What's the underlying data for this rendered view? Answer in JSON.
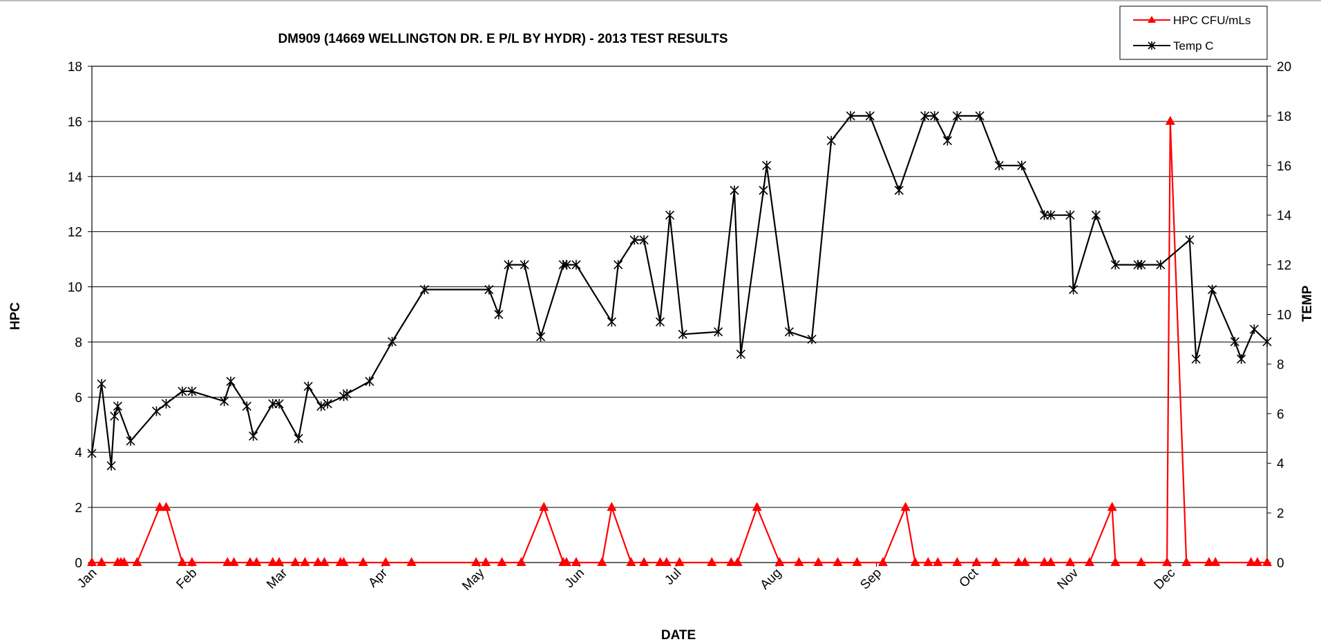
{
  "chart_data": {
    "type": "line",
    "title": "DM909 (14669 WELLINGTON DR. E P/L BY HYDR) - 2013 TEST RESULTS",
    "xlabel": "DATE",
    "ylabel": "HPC",
    "y2label": "TEMP",
    "x_axis": {
      "type": "date",
      "range": [
        "2013-01-01",
        "2013-12-31"
      ],
      "tick_labels": [
        "Jan",
        "Feb",
        "Mar",
        "Apr",
        "May",
        "Jun",
        "Jul",
        "Aug",
        "Sep",
        "Oct",
        "Nov",
        "Dec"
      ]
    },
    "ylim": [
      0,
      18
    ],
    "yticks": [
      0,
      2,
      4,
      6,
      8,
      10,
      12,
      14,
      16,
      18
    ],
    "y2lim": [
      0,
      20
    ],
    "y2ticks": [
      0,
      2,
      4,
      6,
      8,
      10,
      12,
      14,
      16,
      18,
      20
    ],
    "grid": true,
    "legend_position": "top-right",
    "series": [
      {
        "name": "HPC CFU/mLs",
        "axis": "left",
        "color": "#ff0000",
        "marker": "triangle",
        "points": [
          [
            "2013-01-01",
            0
          ],
          [
            "2013-01-04",
            0
          ],
          [
            "2013-01-09",
            0
          ],
          [
            "2013-01-10",
            0
          ],
          [
            "2013-01-11",
            0
          ],
          [
            "2013-01-15",
            0
          ],
          [
            "2013-01-22",
            2
          ],
          [
            "2013-01-24",
            2
          ],
          [
            "2013-01-29",
            0
          ],
          [
            "2013-02-01",
            0
          ],
          [
            "2013-02-12",
            0
          ],
          [
            "2013-02-14",
            0
          ],
          [
            "2013-02-19",
            0
          ],
          [
            "2013-02-21",
            0
          ],
          [
            "2013-02-26",
            0
          ],
          [
            "2013-02-28",
            0
          ],
          [
            "2013-03-05",
            0
          ],
          [
            "2013-03-08",
            0
          ],
          [
            "2013-03-12",
            0
          ],
          [
            "2013-03-14",
            0
          ],
          [
            "2013-03-19",
            0
          ],
          [
            "2013-03-20",
            0
          ],
          [
            "2013-03-26",
            0
          ],
          [
            "2013-04-02",
            0
          ],
          [
            "2013-04-10",
            0
          ],
          [
            "2013-04-30",
            0
          ],
          [
            "2013-05-03",
            0
          ],
          [
            "2013-05-08",
            0
          ],
          [
            "2013-05-14",
            0
          ],
          [
            "2013-05-21",
            2
          ],
          [
            "2013-05-27",
            0
          ],
          [
            "2013-05-28",
            0
          ],
          [
            "2013-05-31",
            0
          ],
          [
            "2013-06-08",
            0
          ],
          [
            "2013-06-11",
            2
          ],
          [
            "2013-06-17",
            0
          ],
          [
            "2013-06-21",
            0
          ],
          [
            "2013-06-26",
            0
          ],
          [
            "2013-06-28",
            0
          ],
          [
            "2013-07-02",
            0
          ],
          [
            "2013-07-12",
            0
          ],
          [
            "2013-07-18",
            0
          ],
          [
            "2013-07-20",
            0
          ],
          [
            "2013-07-26",
            2
          ],
          [
            "2013-08-02",
            0
          ],
          [
            "2013-08-08",
            0
          ],
          [
            "2013-08-14",
            0
          ],
          [
            "2013-08-20",
            0
          ],
          [
            "2013-08-26",
            0
          ],
          [
            "2013-09-03",
            0
          ],
          [
            "2013-09-10",
            2
          ],
          [
            "2013-09-13",
            0
          ],
          [
            "2013-09-17",
            0
          ],
          [
            "2013-09-20",
            0
          ],
          [
            "2013-09-26",
            0
          ],
          [
            "2013-10-02",
            0
          ],
          [
            "2013-10-08",
            0
          ],
          [
            "2013-10-15",
            0
          ],
          [
            "2013-10-17",
            0
          ],
          [
            "2013-10-23",
            0
          ],
          [
            "2013-10-25",
            0
          ],
          [
            "2013-10-31",
            0
          ],
          [
            "2013-11-06",
            0
          ],
          [
            "2013-11-13",
            2
          ],
          [
            "2013-11-14",
            0
          ],
          [
            "2013-11-22",
            0
          ],
          [
            "2013-11-30",
            0
          ],
          [
            "2013-12-01",
            16
          ],
          [
            "2013-12-06",
            0
          ],
          [
            "2013-12-13",
            0
          ],
          [
            "2013-12-15",
            0
          ],
          [
            "2013-12-26",
            0
          ],
          [
            "2013-12-28",
            0
          ],
          [
            "2013-12-31",
            0
          ]
        ]
      },
      {
        "name": "Temp C",
        "axis": "right",
        "color": "#000000",
        "marker": "star",
        "points": [
          [
            "2013-01-01",
            4.4
          ],
          [
            "2013-01-04",
            7.2
          ],
          [
            "2013-01-07",
            3.9
          ],
          [
            "2013-01-08",
            5.9
          ],
          [
            "2013-01-09",
            6.3
          ],
          [
            "2013-01-13",
            4.9
          ],
          [
            "2013-01-21",
            6.1
          ],
          [
            "2013-01-24",
            6.4
          ],
          [
            "2013-01-29",
            6.9
          ],
          [
            "2013-02-01",
            6.9
          ],
          [
            "2013-02-11",
            6.5
          ],
          [
            "2013-02-13",
            7.3
          ],
          [
            "2013-02-18",
            6.3
          ],
          [
            "2013-02-20",
            5.1
          ],
          [
            "2013-02-26",
            6.4
          ],
          [
            "2013-02-28",
            6.4
          ],
          [
            "2013-03-06",
            5
          ],
          [
            "2013-03-09",
            7.1
          ],
          [
            "2013-03-13",
            6.3
          ],
          [
            "2013-03-15",
            6.4
          ],
          [
            "2013-03-20",
            6.7
          ],
          [
            "2013-03-21",
            6.8
          ],
          [
            "2013-03-28",
            7.3
          ],
          [
            "2013-04-04",
            8.9
          ],
          [
            "2013-04-14",
            11
          ],
          [
            "2013-05-04",
            11
          ],
          [
            "2013-05-07",
            10
          ],
          [
            "2013-05-10",
            12
          ],
          [
            "2013-05-15",
            12
          ],
          [
            "2013-05-20",
            9.1
          ],
          [
            "2013-05-27",
            12
          ],
          [
            "2013-05-28",
            12
          ],
          [
            "2013-05-31",
            12
          ],
          [
            "2013-06-11",
            9.7
          ],
          [
            "2013-06-13",
            12
          ],
          [
            "2013-06-18",
            13
          ],
          [
            "2013-06-21",
            13
          ],
          [
            "2013-06-26",
            9.7
          ],
          [
            "2013-06-29",
            14
          ],
          [
            "2013-07-03",
            9.2
          ],
          [
            "2013-07-14",
            9.3
          ],
          [
            "2013-07-19",
            15
          ],
          [
            "2013-07-21",
            8.4
          ],
          [
            "2013-07-28",
            15
          ],
          [
            "2013-07-29",
            16
          ],
          [
            "2013-08-05",
            9.3
          ],
          [
            "2013-08-12",
            9
          ],
          [
            "2013-08-18",
            17
          ],
          [
            "2013-08-24",
            18
          ],
          [
            "2013-08-30",
            18
          ],
          [
            "2013-09-08",
            15
          ],
          [
            "2013-09-16",
            18
          ],
          [
            "2013-09-19",
            18
          ],
          [
            "2013-09-23",
            17
          ],
          [
            "2013-09-26",
            18
          ],
          [
            "2013-10-03",
            18
          ],
          [
            "2013-10-09",
            16
          ],
          [
            "2013-10-16",
            16
          ],
          [
            "2013-10-23",
            14
          ],
          [
            "2013-10-25",
            14
          ],
          [
            "2013-10-31",
            14
          ],
          [
            "2013-11-01",
            11
          ],
          [
            "2013-11-08",
            14
          ],
          [
            "2013-11-14",
            12
          ],
          [
            "2013-11-21",
            12
          ],
          [
            "2013-11-22",
            12
          ],
          [
            "2013-11-28",
            12
          ],
          [
            "2013-12-07",
            13
          ],
          [
            "2013-12-09",
            8.2
          ],
          [
            "2013-12-14",
            11
          ],
          [
            "2013-12-21",
            8.9
          ],
          [
            "2013-12-23",
            8.2
          ],
          [
            "2013-12-27",
            9.4
          ],
          [
            "2013-12-31",
            8.9
          ]
        ]
      }
    ]
  }
}
